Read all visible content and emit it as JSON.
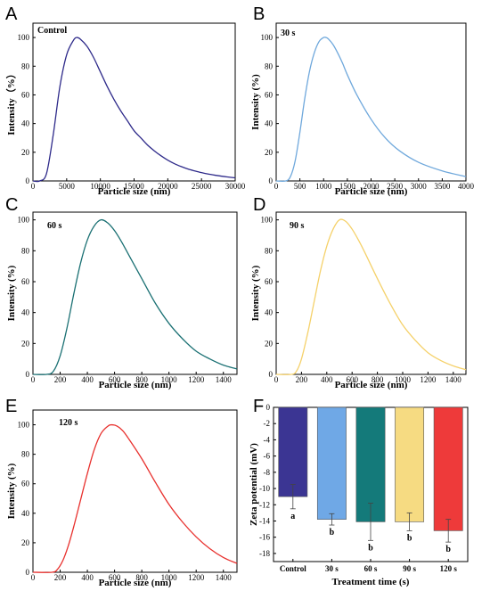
{
  "chart_data": [
    {
      "id": "A",
      "type": "line",
      "panel_label": "A",
      "annotation": "Control",
      "xlabel": "Particle size (nm)",
      "ylabel": "Intensity（%）",
      "xlim": [
        0,
        30000
      ],
      "ylim": [
        0,
        110
      ],
      "xticks": [
        0,
        5000,
        10000,
        15000,
        20000,
        25000,
        30000
      ],
      "yticks": [
        0,
        20,
        40,
        60,
        80,
        100
      ],
      "color": "#2e2a8a",
      "x": [
        0,
        1000,
        2000,
        3000,
        4000,
        5000,
        6000,
        6500,
        7000,
        8000,
        9000,
        10000,
        11000,
        12000,
        13000,
        14000,
        15000,
        16000,
        17000,
        18000,
        19000,
        20000,
        21000,
        22000,
        23000,
        24000,
        25000,
        26000,
        27000,
        28000,
        29000,
        30000
      ],
      "y": [
        0,
        0,
        5,
        32,
        66,
        88,
        98,
        100,
        99,
        94,
        86,
        76,
        66,
        57,
        49,
        42,
        35,
        30,
        25,
        21,
        17.5,
        14.5,
        12,
        10,
        8.3,
        7,
        5.8,
        4.8,
        4,
        3.3,
        2.7,
        2.2
      ]
    },
    {
      "id": "B",
      "type": "line",
      "panel_label": "B",
      "annotation": "30 s",
      "xlabel": "Particle size (nm)",
      "ylabel": "Intensity (%)",
      "xlim": [
        0,
        4000
      ],
      "ylim": [
        0,
        110
      ],
      "xticks": [
        0,
        500,
        1000,
        1500,
        2000,
        2500,
        3000,
        3500,
        4000
      ],
      "yticks": [
        0,
        20,
        40,
        60,
        80,
        100
      ],
      "color": "#6fa8dc",
      "x": [
        0,
        200,
        300,
        400,
        500,
        600,
        700,
        800,
        900,
        1000,
        1050,
        1100,
        1200,
        1300,
        1400,
        1500,
        1700,
        2000,
        2300,
        2600,
        3000,
        3500,
        4000
      ],
      "y": [
        0,
        0,
        3,
        14,
        34,
        57,
        76,
        89,
        97,
        100,
        100,
        99,
        95,
        89,
        82,
        74,
        60,
        43,
        30,
        21,
        13,
        7,
        3
      ]
    },
    {
      "id": "C",
      "type": "line",
      "panel_label": "C",
      "annotation": "60 s",
      "xlabel": "Particle size (nm)",
      "ylabel": "Intensity (%)",
      "xlim": [
        0,
        1500
      ],
      "ylim": [
        0,
        105
      ],
      "xticks": [
        0,
        200,
        400,
        600,
        800,
        1000,
        1200,
        1400
      ],
      "yticks": [
        0,
        20,
        40,
        60,
        80,
        100
      ],
      "color": "#1a7073",
      "x": [
        0,
        100,
        150,
        200,
        250,
        300,
        350,
        400,
        450,
        500,
        550,
        600,
        650,
        700,
        800,
        900,
        1000,
        1100,
        1200,
        1300,
        1400,
        1500
      ],
      "y": [
        0,
        0,
        2,
        12,
        30,
        52,
        72,
        87,
        96,
        100,
        98,
        93,
        86,
        78,
        62,
        46,
        33,
        23,
        15,
        10,
        6,
        3.5
      ]
    },
    {
      "id": "D",
      "type": "line",
      "panel_label": "D",
      "annotation": "90 s",
      "xlabel": "Particle size (nm)",
      "ylabel": "Intensity (%)",
      "xlim": [
        0,
        1500
      ],
      "ylim": [
        0,
        105
      ],
      "xticks": [
        0,
        200,
        400,
        600,
        800,
        1000,
        1200,
        1400
      ],
      "yticks": [
        0,
        20,
        40,
        60,
        80,
        100
      ],
      "color": "#f5d16a",
      "x": [
        0,
        120,
        160,
        200,
        250,
        300,
        350,
        400,
        450,
        500,
        550,
        600,
        650,
        700,
        800,
        900,
        1000,
        1100,
        1200,
        1300,
        1400,
        1500
      ],
      "y": [
        0,
        0,
        2,
        10,
        27,
        47,
        67,
        83,
        94,
        100,
        99,
        94,
        87,
        79,
        62,
        46,
        32,
        22,
        14,
        9,
        5.5,
        3
      ]
    },
    {
      "id": "E",
      "type": "line",
      "panel_label": "E",
      "annotation": "120 s",
      "xlabel": "Particle size (nm)",
      "ylabel": "Intensity (%)",
      "xlim": [
        0,
        1500
      ],
      "ylim": [
        0,
        110
      ],
      "xticks": [
        0,
        200,
        400,
        600,
        800,
        1000,
        1200,
        1400
      ],
      "yticks": [
        0,
        20,
        40,
        60,
        80,
        100
      ],
      "color": "#e8312e",
      "x": [
        0,
        140,
        180,
        220,
        260,
        300,
        350,
        400,
        450,
        500,
        550,
        580,
        620,
        660,
        700,
        800,
        900,
        1000,
        1100,
        1200,
        1300,
        1400,
        1500
      ],
      "y": [
        0,
        0,
        2,
        8,
        18,
        31,
        49,
        67,
        83,
        94,
        99,
        100,
        99,
        96,
        91,
        77,
        61,
        46,
        34,
        24,
        16,
        10,
        6
      ]
    },
    {
      "id": "F",
      "type": "bar",
      "panel_label": "F",
      "xlabel": "Treatment time (s)",
      "ylabel": "Zeta potential (mV)",
      "ylim": [
        -19,
        0
      ],
      "yticks": [
        0,
        -2,
        -4,
        -6,
        -8,
        -10,
        -12,
        -14,
        -16,
        -18
      ],
      "categories": [
        "Control",
        "30 s",
        "60 s",
        "90 s",
        "120 s"
      ],
      "values": [
        -11.0,
        -13.8,
        -14.1,
        -14.1,
        -15.2
      ],
      "errors": [
        1.5,
        0.7,
        2.3,
        1.1,
        1.4
      ],
      "significance": [
        "a",
        "b",
        "b",
        "b",
        "b"
      ],
      "colors": [
        "#3b3593",
        "#6fa8e6",
        "#147a7a",
        "#f6db82",
        "#ee3a3a"
      ]
    }
  ]
}
